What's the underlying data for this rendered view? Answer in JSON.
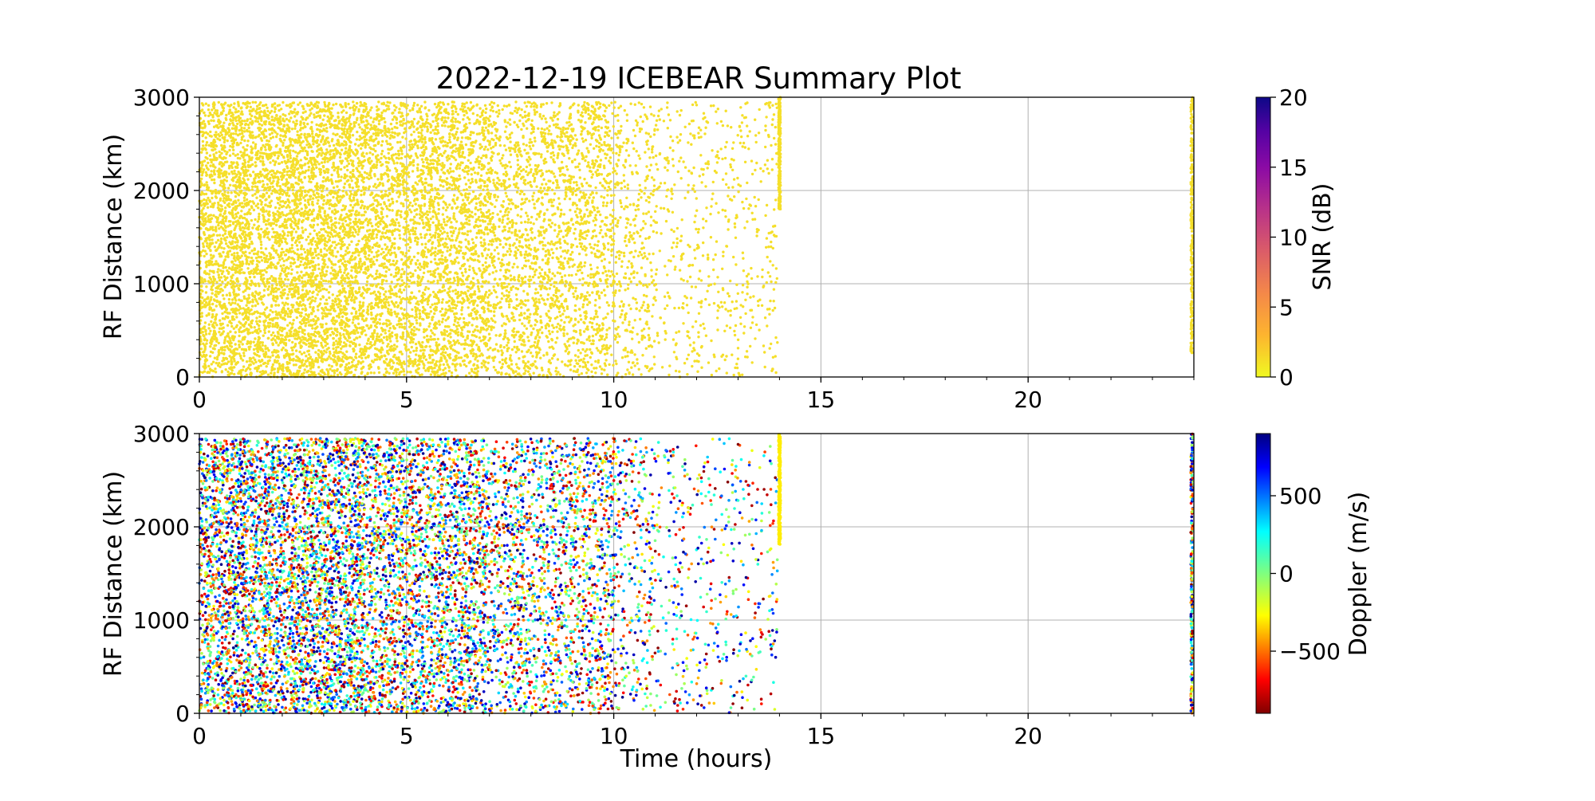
{
  "title": "2022-12-19 ICEBEAR Summary Plot",
  "chart_data": [
    {
      "type": "scatter",
      "panel": "top",
      "title": "2022-12-19 ICEBEAR Summary Plot",
      "xlabel": "",
      "ylabel": "RF Distance (km)",
      "xlim": [
        0,
        24
      ],
      "ylim": [
        0,
        3000
      ],
      "x_ticks": [
        "0",
        "5",
        "10",
        "15",
        "20"
      ],
      "y_ticks": [
        "0",
        "1000",
        "2000",
        "3000"
      ],
      "grid": true,
      "color_by": "SNR",
      "colorbar": {
        "label": "SNR (dB)",
        "range": [
          0,
          20
        ],
        "ticks": [
          "0",
          "5",
          "10",
          "15",
          "20"
        ],
        "colormap": "plasma_r"
      },
      "point_color": "#f5df2a",
      "density_by_hour": [
        {
          "x": [
            0,
            4
          ],
          "density": 1.0
        },
        {
          "x": [
            4,
            7
          ],
          "density": 0.8
        },
        {
          "x": [
            7,
            10
          ],
          "density": 0.55
        },
        {
          "x": [
            10,
            11
          ],
          "density": 0.3
        },
        {
          "x": [
            11,
            14
          ],
          "density": 0.15
        }
      ],
      "features": [
        {
          "x": 14.0,
          "y_range": [
            1800,
            3000
          ],
          "description": "dense streak"
        },
        {
          "x": 23.95,
          "y_range": [
            250,
            3000
          ],
          "description": "dense streak"
        }
      ]
    },
    {
      "type": "scatter",
      "panel": "bottom",
      "title": "",
      "xlabel": "Time (hours)",
      "ylabel": "RF Distance (km)",
      "xlim": [
        0,
        24
      ],
      "ylim": [
        0,
        3000
      ],
      "x_ticks": [
        "0",
        "5",
        "10",
        "15",
        "20"
      ],
      "y_ticks": [
        "0",
        "1000",
        "2000",
        "3000"
      ],
      "grid": true,
      "color_by": "Doppler",
      "colorbar": {
        "label": "Doppler (m/s)",
        "range": [
          -900,
          900
        ],
        "ticks": [
          "−500",
          "0",
          "500"
        ],
        "tick_values": [
          -500,
          0,
          500
        ],
        "colormap": "jet_r"
      },
      "density_by_hour": [
        {
          "x": [
            0,
            4
          ],
          "density": 1.0
        },
        {
          "x": [
            4,
            7
          ],
          "density": 0.8
        },
        {
          "x": [
            7,
            10
          ],
          "density": 0.55
        },
        {
          "x": [
            10,
            11
          ],
          "density": 0.3
        },
        {
          "x": [
            11,
            14
          ],
          "density": 0.15
        }
      ],
      "features": [
        {
          "x": 14.0,
          "y_range": [
            1800,
            3000
          ],
          "doppler": -300
        },
        {
          "x": 23.95,
          "y_range": [
            0,
            3000
          ]
        }
      ]
    }
  ]
}
